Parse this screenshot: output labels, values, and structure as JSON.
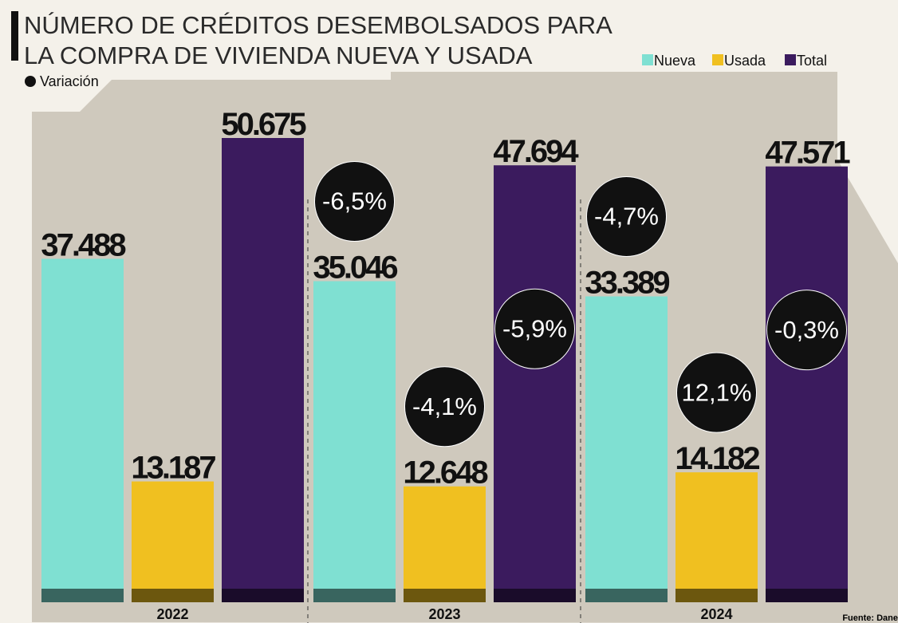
{
  "chart_data": {
    "type": "bar",
    "title": [
      "NÚMERO DE CRÉDITOS DESEMBOLSADOS PARA",
      "LA COMPRA DE VIVIENDA NUEVA Y USADA"
    ],
    "change_legend": "Variación",
    "source": "Fuente: Dane",
    "categories": [
      "2022",
      "2023",
      "2024"
    ],
    "series": [
      {
        "name": "Nueva",
        "color": "#7fe0d2",
        "values": [
          37488,
          35046,
          33389
        ],
        "value_labels": [
          "37.488",
          "35.046",
          "33.389"
        ],
        "change": [
          null,
          -6.5,
          -4.7
        ],
        "change_labels": [
          null,
          "-6,5%",
          "-4,7%"
        ]
      },
      {
        "name": "Usada",
        "color": "#f0c020",
        "values": [
          13187,
          12648,
          14182
        ],
        "value_labels": [
          "13.187",
          "12.648",
          "14.182"
        ],
        "change": [
          null,
          -4.1,
          12.1
        ],
        "change_labels": [
          null,
          "-4,1%",
          "12,1%"
        ]
      },
      {
        "name": "Total",
        "color": "#3b1b5e",
        "values": [
          50675,
          47694,
          47571
        ],
        "value_labels": [
          "50.675",
          "47.694",
          "47.571"
        ],
        "change": [
          null,
          -5.9,
          -0.3
        ],
        "change_labels": [
          null,
          "-5,9%",
          "-0,3%"
        ]
      }
    ]
  }
}
